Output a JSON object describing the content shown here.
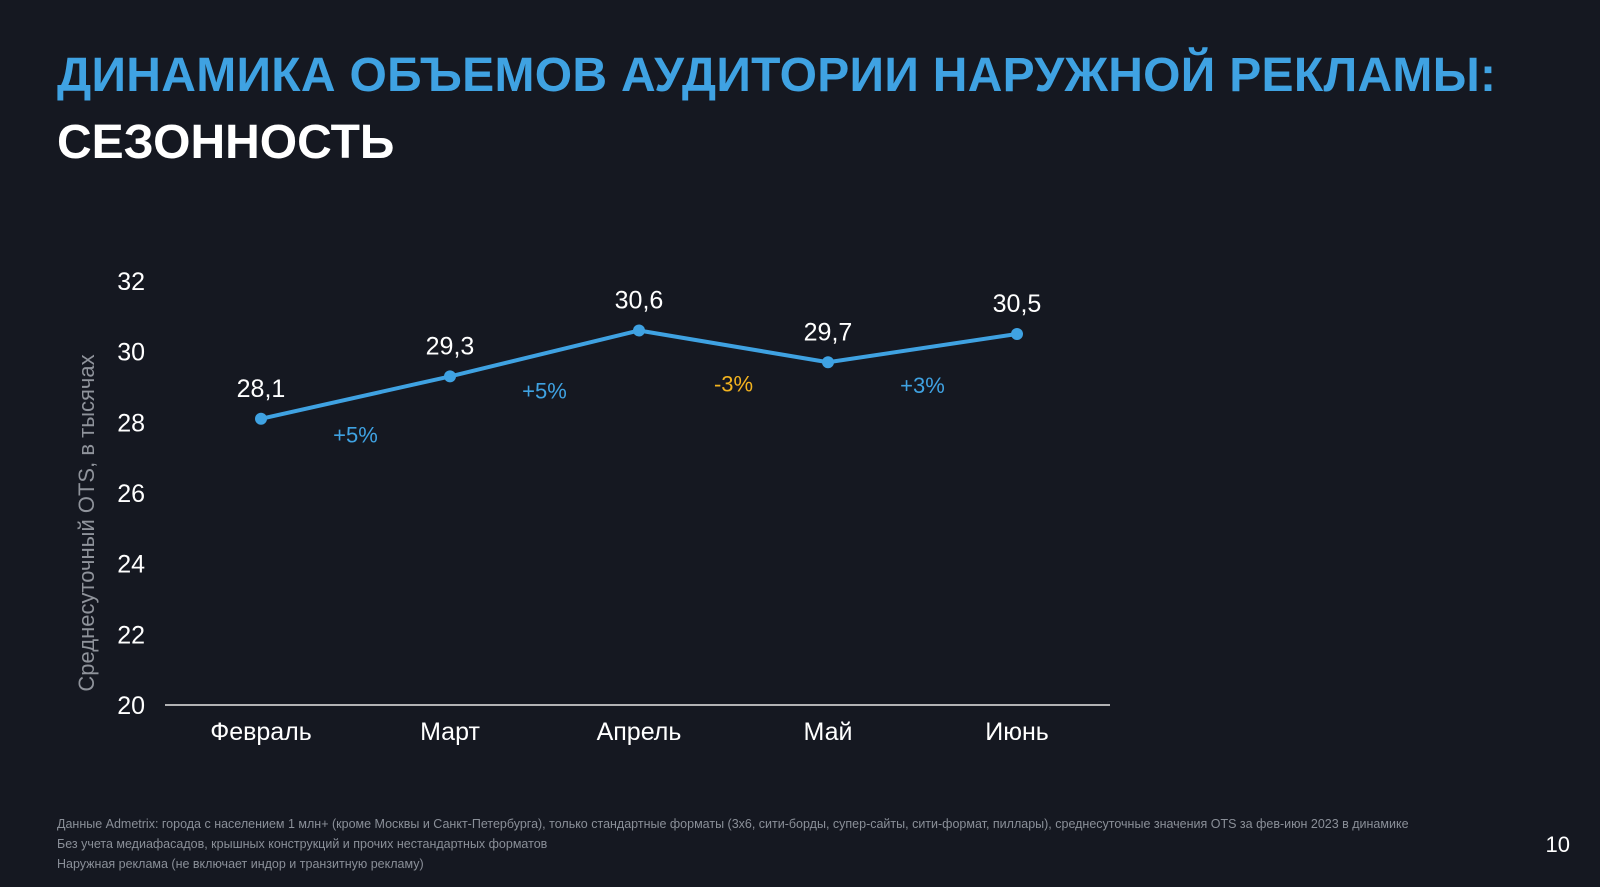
{
  "slide": {
    "title_line1": "ДИНАМИКА ОБЪЕМОВ АУДИТОРИИ НАРУЖНОЙ РЕКЛАМЫ:",
    "title_line2": "СЕЗОННОСТЬ",
    "footnotes": [
      "Данные Admetrix: города с населением 1 млн+ (кроме Москвы и Санкт-Петербурга), только стандартные форматы (3х6, сити-борды, супер-сайты, сити-формат, пиллары), среднесуточные значения OTS за фев-июн 2023 в динамике",
      "Без учета медиафасадов, крышных конструкций и прочих нестандартных форматов",
      "Наружная реклама (не включает индор и транзитную рекламу)"
    ],
    "page_number": "10"
  },
  "colors": {
    "background": "#151821",
    "accent": "#3fa2e2",
    "line": "#3fa2e2",
    "negative_change": "#f2b31f",
    "text": "#ffffff",
    "axis_label": "#8f939b"
  },
  "chart_data": {
    "type": "line",
    "categories": [
      "Февраль",
      "Март",
      "Апрель",
      "Май",
      "Июнь"
    ],
    "values": [
      28.1,
      29.3,
      30.6,
      29.7,
      30.5
    ],
    "value_labels": [
      "28,1",
      "29,3",
      "30,6",
      "29,7",
      "30,5"
    ],
    "changes": [
      {
        "label": "+5%",
        "direction": "up"
      },
      {
        "label": "+5%",
        "direction": "up"
      },
      {
        "label": "-3%",
        "direction": "down"
      },
      {
        "label": "+3%",
        "direction": "up"
      }
    ],
    "ylabel": "Среднесуточный OTS, в тысячах",
    "xlabel": "",
    "ylim": [
      20,
      32
    ],
    "yticks": [
      20,
      22,
      24,
      26,
      28,
      30,
      32
    ],
    "grid": false,
    "legend": "none"
  }
}
